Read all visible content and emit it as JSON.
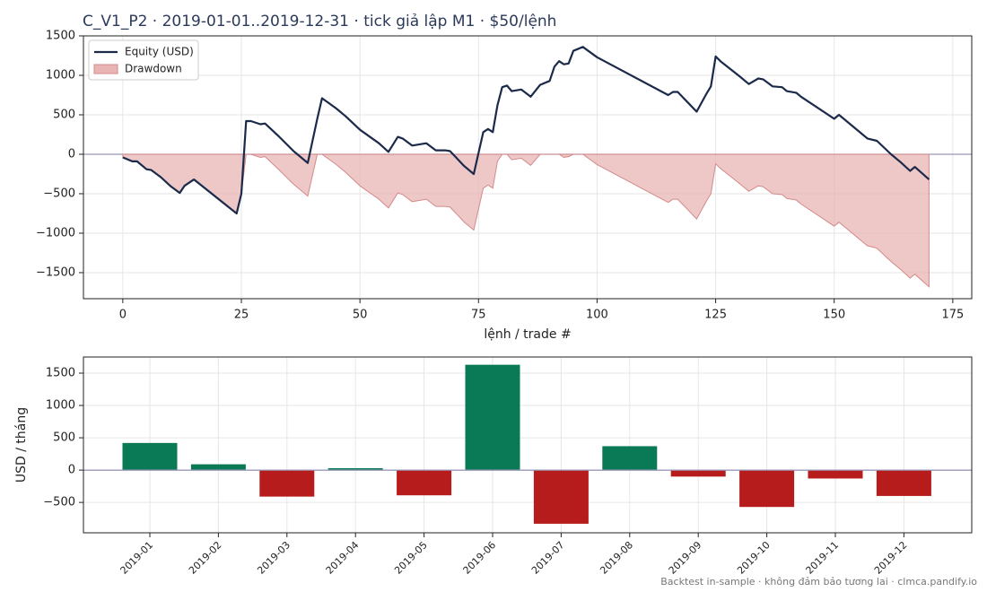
{
  "title": "C_V1_P2 · 2019-01-01..2019-12-31 · tick giả lập M1 · $50/lệnh",
  "footnote": "Backtest in-sample · không đảm bảo tương lai · clmca.pandify.io",
  "chart_data": [
    {
      "type": "line",
      "xlabel": "lệnh / trade #",
      "x": [
        0,
        2,
        3,
        5,
        6,
        8,
        10,
        12,
        13,
        15,
        24,
        25,
        26,
        27,
        29,
        30,
        33,
        36,
        39,
        41,
        42,
        45,
        47,
        50,
        54,
        56,
        58,
        59,
        61,
        64,
        66,
        68,
        69,
        72,
        74,
        76,
        77,
        78,
        79,
        80,
        81,
        82,
        84,
        86,
        88,
        90,
        91,
        92,
        93,
        94,
        95,
        97,
        100,
        115,
        116,
        117,
        121,
        123,
        124,
        125,
        126,
        130,
        132,
        134,
        135,
        137,
        139,
        140,
        142,
        143,
        150,
        151,
        157,
        159,
        162,
        164,
        166,
        167,
        170
      ],
      "series": [
        {
          "name": "Equity (USD)",
          "color": "#1b2a4a",
          "values": [
            -40,
            -90,
            -90,
            -190,
            -200,
            -290,
            -400,
            -490,
            -400,
            -320,
            -750,
            -500,
            420,
            420,
            380,
            390,
            220,
            40,
            -110,
            450,
            710,
            580,
            480,
            310,
            140,
            30,
            220,
            200,
            110,
            140,
            50,
            50,
            40,
            -150,
            -250,
            280,
            320,
            280,
            620,
            850,
            870,
            800,
            820,
            730,
            880,
            930,
            1110,
            1180,
            1140,
            1150,
            1310,
            1360,
            1230,
            750,
            790,
            790,
            540,
            760,
            860,
            1240,
            1180,
            990,
            890,
            960,
            950,
            860,
            850,
            800,
            780,
            730,
            450,
            500,
            200,
            170,
            0,
            -100,
            -210,
            -160,
            -320
          ]
        },
        {
          "name": "Drawdown",
          "color": "#e8b4b4",
          "edge_color": "#d48a8a",
          "fill": true,
          "values": [
            -40,
            -90,
            -90,
            -190,
            -200,
            -290,
            -400,
            -490,
            -400,
            -320,
            -750,
            -500,
            0,
            0,
            -40,
            -30,
            -200,
            -380,
            -530,
            0,
            0,
            -130,
            -230,
            -400,
            -570,
            -680,
            -490,
            -510,
            -600,
            -570,
            -660,
            -660,
            -670,
            -860,
            -960,
            -430,
            -390,
            -430,
            -90,
            0,
            0,
            -70,
            -50,
            -140,
            0,
            0,
            0,
            0,
            -40,
            -30,
            0,
            0,
            -130,
            -610,
            -570,
            -570,
            -820,
            -600,
            -500,
            -120,
            -180,
            -370,
            -470,
            -400,
            -410,
            -500,
            -510,
            -560,
            -580,
            -630,
            -910,
            -860,
            -1160,
            -1190,
            -1360,
            -1460,
            -1570,
            -1520,
            -1680
          ]
        }
      ],
      "xlim": [
        -8.3,
        179
      ],
      "ylim": [
        -1830,
        1500
      ],
      "xticks": [
        0,
        25,
        50,
        75,
        100,
        125,
        150,
        175
      ],
      "yticks": [
        {
          "value": -1500,
          "label": "−1500"
        },
        {
          "value": -1000,
          "label": "−1000"
        },
        {
          "value": -500,
          "label": "−500"
        },
        0,
        500,
        1000,
        1500
      ],
      "hline": 0,
      "grid": true,
      "legend": "upper left"
    },
    {
      "type": "bar",
      "ylabel": "USD / tháng",
      "categories": [
        "2019-01",
        "2019-02",
        "2019-03",
        "2019-04",
        "2019-05",
        "2019-06",
        "2019-07",
        "2019-08",
        "2019-09",
        "2019-10",
        "2019-11",
        "2019-12"
      ],
      "values": [
        420,
        90,
        -410,
        30,
        -390,
        1630,
        -830,
        370,
        -100,
        -570,
        -130,
        -400
      ],
      "positive_color": "#0a7a56",
      "negative_color": "#b71c1c",
      "ylim": [
        -970,
        1750
      ],
      "yticks": [
        {
          "value": -500,
          "label": "−500"
        },
        0,
        500,
        1000,
        1500
      ],
      "hline": 0,
      "grid": true
    }
  ]
}
